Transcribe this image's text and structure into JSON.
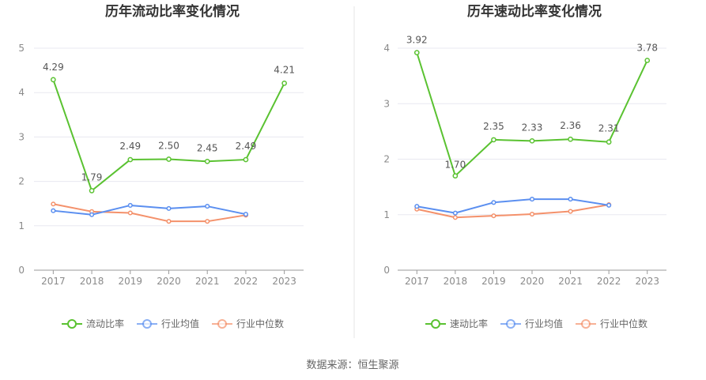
{
  "source": "数据来源：恒生聚源",
  "colors": {
    "main": "#5ac231",
    "avg": "#5b8ff0",
    "median": "#f4916b",
    "grid": "#e8e8f0",
    "axis": "#9a9a9a",
    "divider": "#e6e6e6"
  },
  "chart_data": [
    {
      "type": "line",
      "title": "历年流动比率变化情况",
      "categories": [
        "2017",
        "2018",
        "2019",
        "2020",
        "2021",
        "2022",
        "2023"
      ],
      "ylim": [
        0,
        5
      ],
      "yticks": [
        "0",
        "1",
        "2",
        "3",
        "4",
        "5"
      ],
      "grid": true,
      "legend_position": "bottom",
      "series": [
        {
          "name": "流动比率",
          "role": "main",
          "values": [
            4.29,
            1.79,
            2.49,
            2.5,
            2.45,
            2.49,
            4.21
          ],
          "labels": [
            "4.29",
            "1.79",
            "2.49",
            "2.50",
            "2.45",
            "2.49",
            "4.21"
          ]
        },
        {
          "name": "行业均值",
          "role": "avg",
          "values": [
            1.34,
            1.25,
            1.46,
            1.39,
            1.44,
            1.26,
            null
          ]
        },
        {
          "name": "行业中位数",
          "role": "median",
          "values": [
            1.49,
            1.32,
            1.29,
            1.1,
            1.1,
            1.24,
            null
          ]
        }
      ]
    },
    {
      "type": "line",
      "title": "历年速动比率变化情况",
      "categories": [
        "2017",
        "2018",
        "2019",
        "2020",
        "2021",
        "2022",
        "2023"
      ],
      "ylim": [
        0,
        4
      ],
      "yticks": [
        "0",
        "1",
        "2",
        "3",
        "4"
      ],
      "grid": true,
      "legend_position": "bottom",
      "series": [
        {
          "name": "速动比率",
          "role": "main",
          "values": [
            3.92,
            1.7,
            2.35,
            2.33,
            2.36,
            2.31,
            3.78
          ],
          "labels": [
            "3.92",
            "1.70",
            "2.35",
            "2.33",
            "2.36",
            "2.31",
            "3.78"
          ]
        },
        {
          "name": "行业均值",
          "role": "avg",
          "values": [
            1.15,
            1.03,
            1.22,
            1.28,
            1.28,
            1.17,
            null
          ]
        },
        {
          "name": "行业中位数",
          "role": "median",
          "values": [
            1.1,
            0.95,
            0.98,
            1.01,
            1.06,
            1.18,
            null
          ]
        }
      ]
    }
  ]
}
